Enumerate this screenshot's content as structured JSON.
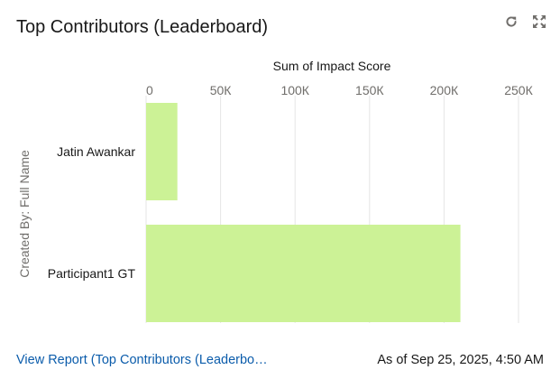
{
  "header": {
    "title": "Top Contributors (Leaderboard)",
    "refresh_icon": "refresh-icon",
    "expand_icon": "expand-icon"
  },
  "footer": {
    "report_link": "View Report (Top Contributors (Leaderbo…",
    "timestamp": "As of Sep 25, 2025, 4:50 AM"
  },
  "colors": {
    "bar": "#ccf296",
    "grid": "#e5e5e5",
    "axis_text": "#706e6b",
    "link": "#0b5cab"
  },
  "chart_data": {
    "type": "bar",
    "orientation": "horizontal",
    "xlabel": "Sum of Impact Score",
    "ylabel": "Created By: Full Name",
    "categories": [
      "Jatin Awankar",
      "Participant1 GT"
    ],
    "values": [
      21000,
      211000
    ],
    "xlim": [
      0,
      250000
    ],
    "xticks": [
      0,
      50000,
      100000,
      150000,
      200000,
      250000
    ],
    "xtick_labels": [
      "0",
      "50К",
      "100К",
      "150К",
      "200К",
      "250К"
    ],
    "grid": true,
    "legend": "none"
  }
}
